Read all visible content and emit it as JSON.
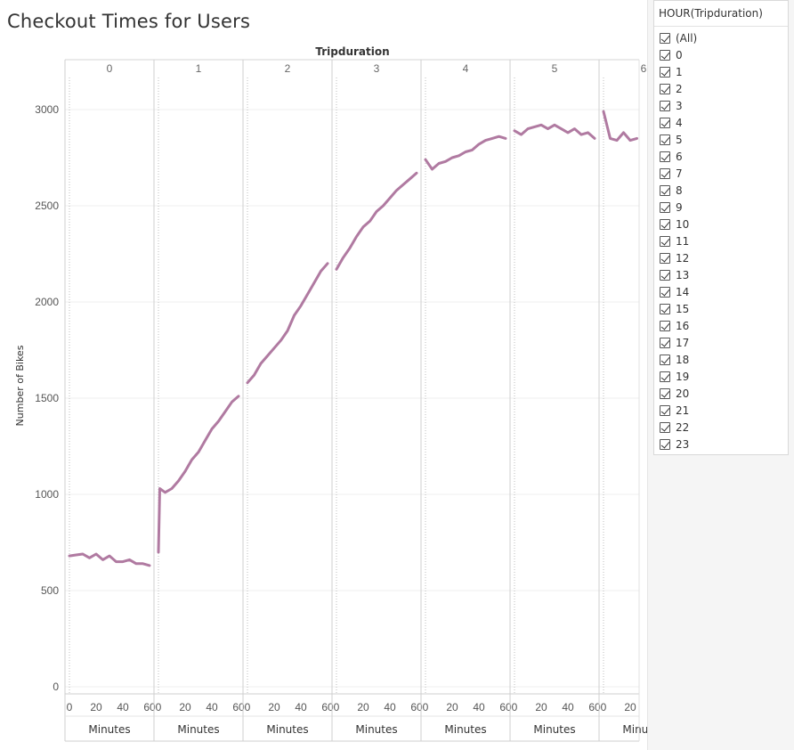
{
  "title": "Checkout Times for Users",
  "filter": {
    "title": "HOUR(Tripduration)",
    "items": [
      "(All)",
      "0",
      "1",
      "2",
      "3",
      "4",
      "5",
      "6",
      "7",
      "8",
      "9",
      "10",
      "11",
      "12",
      "13",
      "14",
      "15",
      "16",
      "17",
      "18",
      "19",
      "20",
      "21",
      "22",
      "23"
    ]
  },
  "chart_data": {
    "type": "line",
    "title": "Checkout Times for Users",
    "column_header": "Tripduration",
    "xlabel": "Minutes",
    "ylabel": "Number of Bikes",
    "ylim": [
      0,
      3200
    ],
    "yticks": [
      0,
      500,
      1000,
      1500,
      2000,
      2500,
      3000
    ],
    "xticks": [
      0,
      20,
      40,
      60
    ],
    "xlim": [
      0,
      63
    ],
    "grid": true,
    "line_color": "#b07aa1",
    "panes": [
      {
        "hour": "0",
        "x": [
          0,
          5,
          10,
          15,
          20,
          25,
          30,
          35,
          40,
          45,
          50,
          55,
          60
        ],
        "y": [
          680,
          685,
          690,
          670,
          690,
          660,
          680,
          650,
          650,
          660,
          640,
          640,
          630
        ]
      },
      {
        "hour": "1",
        "x": [
          0,
          1,
          5,
          10,
          15,
          20,
          25,
          30,
          35,
          40,
          45,
          50,
          55,
          60
        ],
        "y": [
          700,
          1030,
          1010,
          1030,
          1070,
          1120,
          1180,
          1220,
          1280,
          1340,
          1380,
          1430,
          1480,
          1510
        ]
      },
      {
        "hour": "2",
        "x": [
          0,
          5,
          10,
          15,
          20,
          25,
          30,
          35,
          40,
          45,
          50,
          55,
          60
        ],
        "y": [
          1580,
          1620,
          1680,
          1720,
          1760,
          1800,
          1850,
          1930,
          1980,
          2040,
          2100,
          2160,
          2200
        ]
      },
      {
        "hour": "3",
        "x": [
          0,
          5,
          10,
          15,
          20,
          25,
          30,
          35,
          40,
          45,
          50,
          55,
          60
        ],
        "y": [
          2170,
          2230,
          2280,
          2340,
          2390,
          2420,
          2470,
          2500,
          2540,
          2580,
          2610,
          2640,
          2670
        ]
      },
      {
        "hour": "4",
        "x": [
          0,
          5,
          10,
          15,
          20,
          25,
          30,
          35,
          40,
          45,
          50,
          55,
          60
        ],
        "y": [
          2740,
          2690,
          2720,
          2730,
          2750,
          2760,
          2780,
          2790,
          2820,
          2840,
          2850,
          2860,
          2850
        ]
      },
      {
        "hour": "5",
        "x": [
          0,
          5,
          10,
          15,
          20,
          25,
          30,
          35,
          40,
          45,
          50,
          55,
          60
        ],
        "y": [
          2890,
          2870,
          2900,
          2910,
          2920,
          2900,
          2920,
          2900,
          2880,
          2900,
          2870,
          2880,
          2850
        ]
      },
      {
        "hour": "6",
        "x": [
          0,
          5,
          10,
          15,
          20,
          25
        ],
        "y": [
          2990,
          2850,
          2840,
          2880,
          2840,
          2850
        ]
      }
    ]
  }
}
